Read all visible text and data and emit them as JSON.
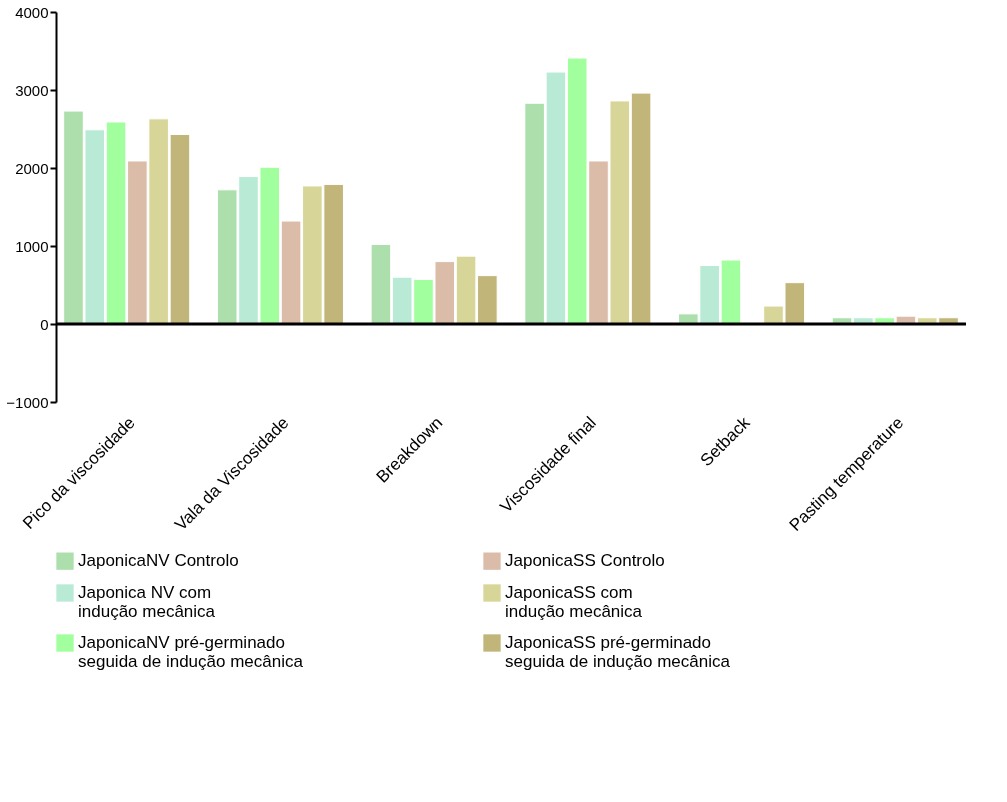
{
  "chart_data": {
    "type": "bar",
    "categories": [
      "Pico da viscosidade",
      "Vala da Viscosidade",
      "Breakdown",
      "Viscosidade final",
      "Setback",
      "Pasting temperature"
    ],
    "series": [
      {
        "name": "JaponicaNV Controlo",
        "color": "#addfad",
        "values": [
          2730,
          1720,
          1020,
          2830,
          130,
          80
        ]
      },
      {
        "name": "Japonica NV  com indução mecânica",
        "color": "#b8ead6",
        "values": [
          2490,
          1890,
          600,
          3230,
          750,
          80
        ]
      },
      {
        "name": "JaponicaNV pré-germinado seguida de indução mecânica",
        "color": "#a2ff9e",
        "values": [
          2590,
          2010,
          570,
          3410,
          820,
          80
        ]
      },
      {
        "name": "JaponicaSS Controlo",
        "color": "#dbbca8",
        "values": [
          2090,
          1320,
          800,
          2090,
          null,
          100
        ]
      },
      {
        "name": "JaponicaSS com indução mecânica",
        "color": "#d7d698",
        "values": [
          2630,
          1770,
          870,
          2860,
          230,
          80
        ]
      },
      {
        "name": "JaponicaSS pré-germinado seguida de indução mecânica",
        "color": "#c1b57a",
        "values": [
          2430,
          1790,
          620,
          2960,
          530,
          80
        ]
      }
    ],
    "ylim": [
      -1000,
      4000
    ],
    "yticks": [
      -1000,
      0,
      1000,
      2000,
      3000,
      4000
    ],
    "ref_lines": [
      {
        "axis": "y",
        "value": 0
      }
    ],
    "grid": false,
    "legend": "bottom"
  }
}
